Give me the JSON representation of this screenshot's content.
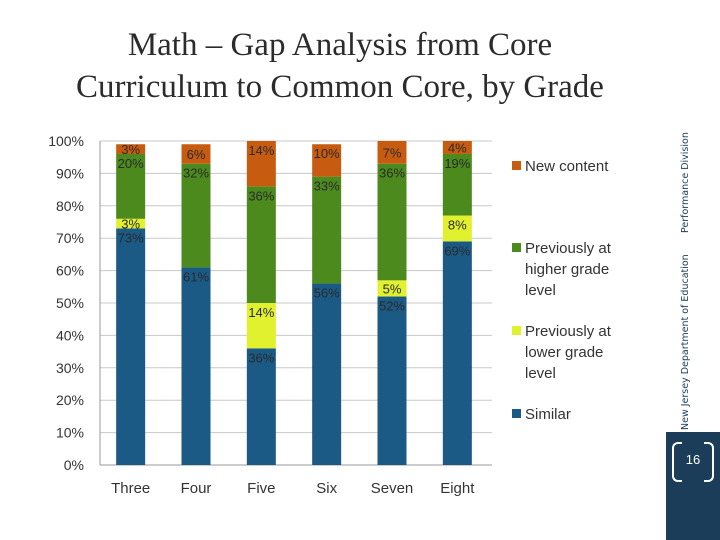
{
  "slide": {
    "title_line1": "Math – Gap Analysis from Core",
    "title_line2": "Curriculum to Common Core, by Grade",
    "sidebar_org": "New Jersey Department of Education",
    "sidebar_division": "Performance Division",
    "page_number": "16"
  },
  "colors": {
    "similar": "#1a5a85",
    "lower": "#e2f12e",
    "higher": "#4c8a1e",
    "new": "#c75c10",
    "sidebar": "#1c3d5a"
  },
  "chart_data": {
    "type": "bar",
    "stacked": true,
    "categories": [
      "Three",
      "Four",
      "Five",
      "Six",
      "Seven",
      "Eight"
    ],
    "y_ticks": [
      "0%",
      "10%",
      "20%",
      "30%",
      "40%",
      "50%",
      "60%",
      "70%",
      "80%",
      "90%",
      "100%"
    ],
    "ylim": [
      0,
      100
    ],
    "legend_position": "right",
    "grid": true,
    "series": [
      {
        "name": "Similar",
        "key": "similar",
        "values": [
          73,
          61,
          36,
          56,
          52,
          69
        ],
        "labels": [
          "73%",
          "61%",
          "36%",
          "56%",
          "52%",
          "69%"
        ]
      },
      {
        "name": "Previously at lower grade level",
        "key": "lower",
        "values": [
          3,
          0,
          14,
          0,
          5,
          8
        ],
        "labels": [
          "3%",
          "",
          "14%",
          "",
          "5%",
          "8%"
        ]
      },
      {
        "name": "Previously at higher grade level",
        "key": "higher",
        "values": [
          20,
          32,
          36,
          33,
          36,
          19
        ],
        "labels": [
          "20%",
          "32%",
          "36%",
          "33%",
          "36%",
          "19%"
        ]
      },
      {
        "name": "New content",
        "key": "new",
        "values": [
          3,
          6,
          14,
          10,
          7,
          4
        ],
        "labels": [
          "3%",
          "6%",
          "14%",
          "10%",
          "7%",
          "4%"
        ]
      }
    ],
    "legend": [
      {
        "key": "new",
        "lines": [
          "New content"
        ]
      },
      {
        "key": "higher",
        "lines": [
          "Previously at",
          "higher grade",
          "level"
        ]
      },
      {
        "key": "lower",
        "lines": [
          "Previously at",
          "lower grade",
          "level"
        ]
      },
      {
        "key": "similar",
        "lines": [
          "Similar"
        ]
      }
    ]
  }
}
